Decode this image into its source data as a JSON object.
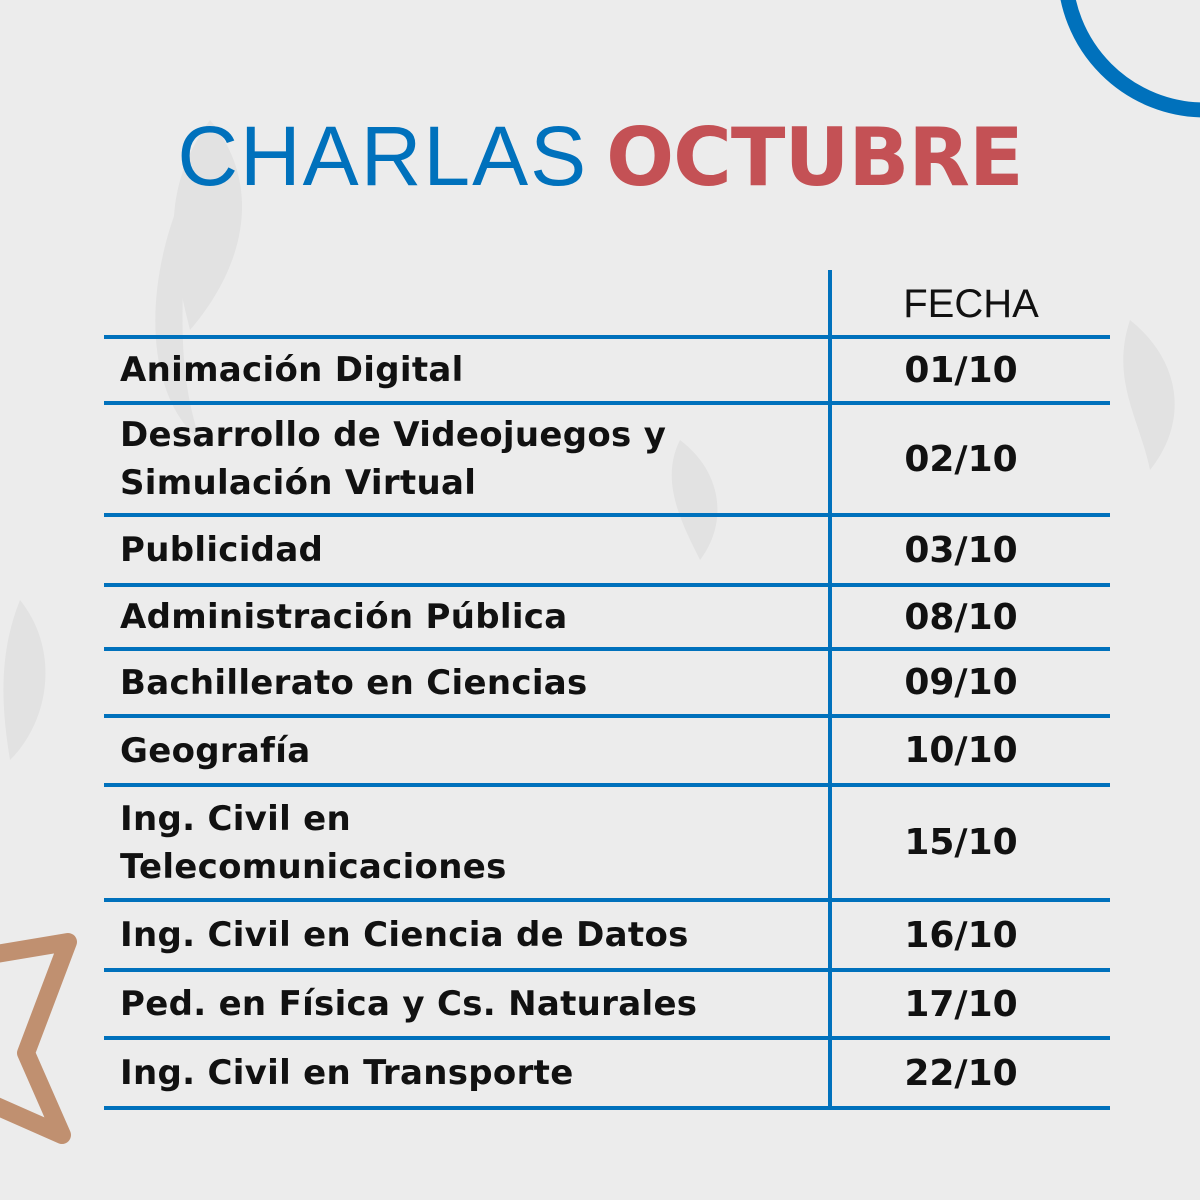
{
  "title": {
    "part1": "CHARLAS",
    "part2": "OCTUBRE"
  },
  "colors": {
    "blue": "#0071bc",
    "red": "#c45155",
    "tan": "#c09070",
    "background": "#ececec"
  },
  "table": {
    "header": "FECHA",
    "rows": [
      {
        "name": "Animación Digital",
        "date": "01/10"
      },
      {
        "name": "Desarrollo de Videojuegos y Simulación Virtual",
        "date": "02/10"
      },
      {
        "name": "Publicidad",
        "date": "03/10"
      },
      {
        "name": "Administración Pública",
        "date": "08/10"
      },
      {
        "name": "Bachillerato en Ciencias",
        "date": "09/10"
      },
      {
        "name": "Geografía",
        "date": "10/10"
      },
      {
        "name": "Ing. Civil en Telecomunicaciones",
        "date": "15/10"
      },
      {
        "name": "Ing. Civil en Ciencia de Datos",
        "date": "16/10"
      },
      {
        "name": "Ped. en Física y Cs. Naturales",
        "date": "17/10"
      },
      {
        "name": "Ing. Civil en Transporte",
        "date": "22/10"
      }
    ]
  }
}
